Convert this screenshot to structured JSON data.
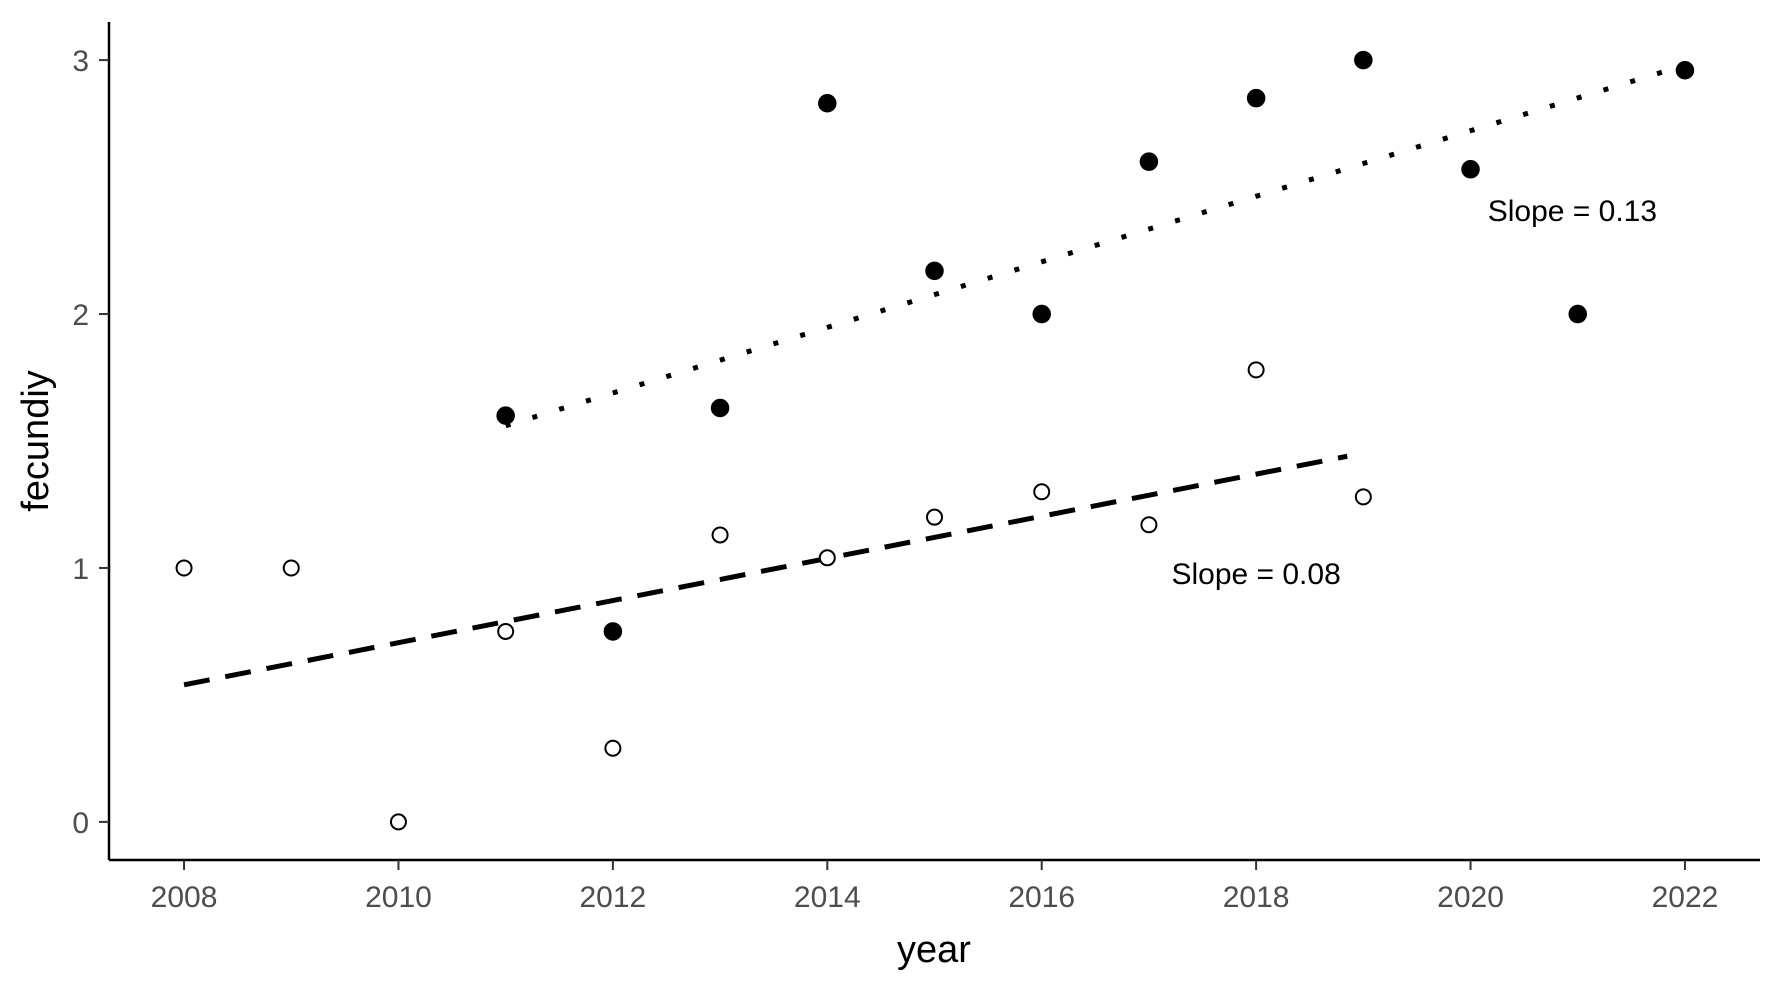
{
  "chart_data": {
    "type": "scatter",
    "xlabel": "year",
    "ylabel": "fecundiy",
    "xlim": [
      2007.3,
      2022.7
    ],
    "ylim": [
      -0.15,
      3.15
    ],
    "x_ticks": [
      "2008",
      "2010",
      "2012",
      "2014",
      "2016",
      "2018",
      "2020",
      "2022"
    ],
    "y_ticks": [
      "0",
      "1",
      "2",
      "3"
    ],
    "grid": false,
    "series": [
      {
        "marker": "open-circle",
        "points": [
          {
            "x": 2008,
            "y": 1.0
          },
          {
            "x": 2009,
            "y": 1.0
          },
          {
            "x": 2010,
            "y": 0.0
          },
          {
            "x": 2011,
            "y": 0.75
          },
          {
            "x": 2012,
            "y": 0.29
          },
          {
            "x": 2013,
            "y": 1.13
          },
          {
            "x": 2014,
            "y": 1.04
          },
          {
            "x": 2015,
            "y": 1.2
          },
          {
            "x": 2016,
            "y": 1.3
          },
          {
            "x": 2017,
            "y": 1.17
          },
          {
            "x": 2018,
            "y": 1.78
          },
          {
            "x": 2019,
            "y": 1.28
          }
        ],
        "trend": {
          "style": "dashed",
          "x": [
            2008,
            2018.85
          ],
          "y": [
            0.54,
            1.44
          ]
        }
      },
      {
        "marker": "filled-circle",
        "points": [
          {
            "x": 2011,
            "y": 1.6
          },
          {
            "x": 2012,
            "y": 0.75
          },
          {
            "x": 2013,
            "y": 1.63
          },
          {
            "x": 2014,
            "y": 2.83
          },
          {
            "x": 2015,
            "y": 2.17
          },
          {
            "x": 2016,
            "y": 2.0
          },
          {
            "x": 2017,
            "y": 2.6
          },
          {
            "x": 2018,
            "y": 2.85
          },
          {
            "x": 2019,
            "y": 3.0
          },
          {
            "x": 2020,
            "y": 2.57
          },
          {
            "x": 2021,
            "y": 2.0
          },
          {
            "x": 2022,
            "y": 2.96
          }
        ],
        "trend": {
          "style": "dotted",
          "x": [
            2011,
            2022
          ],
          "y": [
            1.56,
            2.98
          ]
        }
      }
    ],
    "annotations": [
      {
        "text": "Slope = 0.13",
        "x": 2020.95,
        "y": 2.41
      },
      {
        "text": "Slope = 0.08",
        "x": 2018.0,
        "y": 0.98
      }
    ]
  }
}
